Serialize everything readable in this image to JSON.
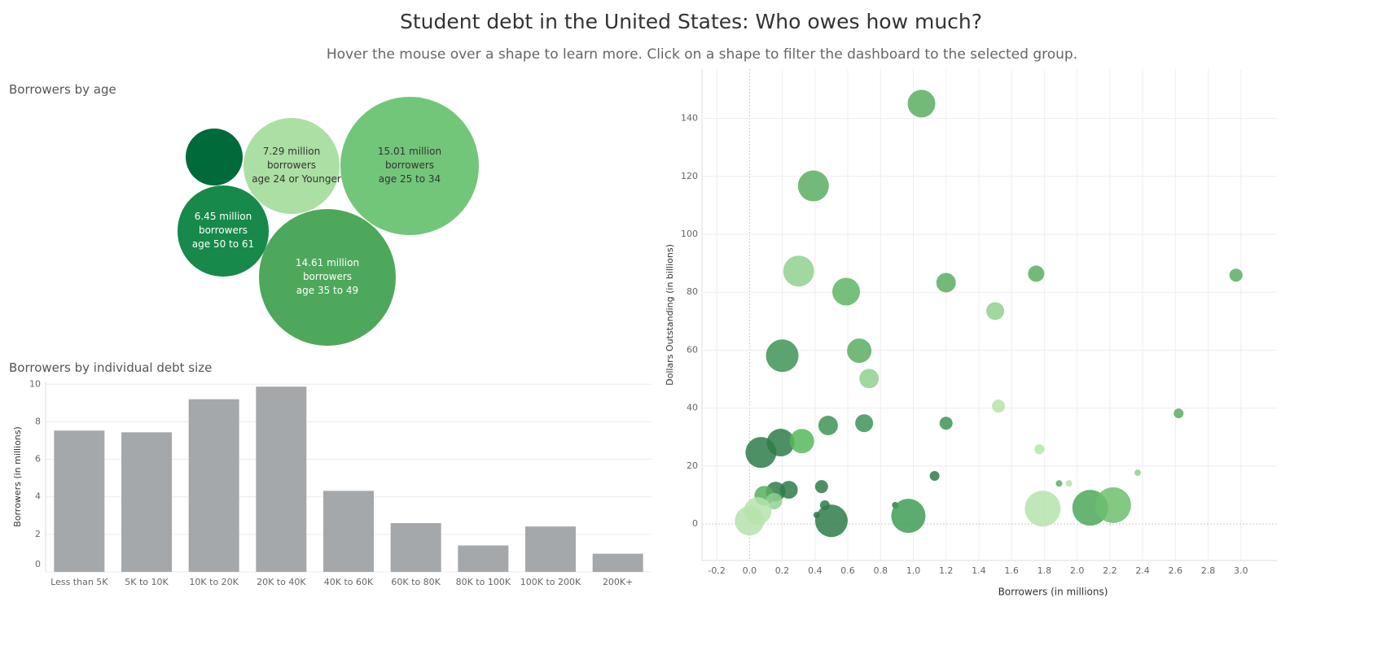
{
  "title": "Student debt in the United States: Who owes how much?",
  "subtitle": "Hover the mouse over a shape to learn more. Click on a shape to filter the dashboard to the selected group.",
  "chart_data": [
    {
      "type": "packed-bubble",
      "title": "Borrowers by age",
      "categories": [
        null,
        "age 24 or Younger",
        "age 25 to 34",
        "age 50 to 61",
        "age 35 to 49"
      ],
      "values": [
        2.55,
        7.29,
        15.01,
        6.45,
        14.61
      ],
      "value_labels": [
        null,
        "7.29 million borrowers",
        "15.01 million borrowers",
        "6.45 million borrowers",
        "14.61 million borrowers"
      ],
      "colors": [
        "#016a3a",
        "#acdfa3",
        "#72c67a",
        "#17894a",
        "#4ea85b"
      ]
    },
    {
      "type": "bar",
      "title": "Borrowers by individual debt size",
      "y_label": "Borrowers (in millions)",
      "categories": [
        "Less than 5K",
        "5K to 10K",
        "10K to 20K",
        "20K to 40K",
        "40K to 60K",
        "60K to 80K",
        "80K to 100K",
        "100K to 200K",
        "200K+"
      ],
      "values": [
        7.53,
        7.44,
        9.2,
        9.87,
        4.32,
        2.6,
        1.41,
        2.42,
        0.97
      ],
      "color": "#a5a8ab",
      "ylim": [
        0,
        10.1
      ],
      "yticks": [
        0,
        2,
        4,
        6,
        8,
        10
      ],
      "grid": true
    },
    {
      "type": "scatter",
      "x_label": "Borrowers (in millions)",
      "y_label": "Dollars Outstanding (in billions)",
      "x": [
        1.05,
        0.39,
        0.3,
        0.59,
        1.2,
        1.75,
        2.97,
        1.5,
        0.2,
        0.67,
        0.73,
        1.52,
        2.62,
        0.48,
        0.7,
        1.2,
        0.07,
        0.19,
        0.32,
        1.77,
        1.13,
        2.37,
        1.89,
        1.95,
        0.44,
        0.24,
        0.16,
        0.09,
        0.15,
        0.05,
        0.0,
        0.46,
        0.41,
        0.5,
        0.89,
        0.97,
        1.79,
        2.08,
        2.22
      ],
      "values": [
        145.1,
        116.7,
        87.3,
        80.2,
        83.3,
        86.4,
        85.9,
        73.5,
        58.1,
        59.8,
        50.2,
        40.7,
        38.2,
        34.0,
        34.8,
        34.8,
        24.7,
        28.1,
        28.6,
        25.8,
        16.6,
        17.7,
        14.0,
        14.0,
        12.9,
        11.8,
        11.2,
        9.8,
        7.9,
        4.5,
        1.1,
        6.5,
        3.1,
        1.1,
        6.5,
        2.8,
        5.3,
        5.6,
        6.5
      ],
      "sizes": [
        17,
        19,
        19,
        17,
        12,
        10,
        8,
        11,
        20,
        15,
        12,
        8,
        6,
        12,
        11,
        8,
        19,
        17,
        15,
        6,
        6,
        4,
        4,
        4,
        8,
        11,
        12,
        12,
        10,
        17,
        18,
        6,
        4,
        20,
        4,
        21,
        22,
        22,
        22
      ],
      "colors": [
        "#5aae61",
        "#5aae61",
        "#8fd18f",
        "#5cb565",
        "#5aae61",
        "#5aae61",
        "#5aae61",
        "#8fd18f",
        "#3e9456",
        "#5aae61",
        "#8fd18f",
        "#b5e3ac",
        "#5aae61",
        "#3e9456",
        "#3e9456",
        "#3e9456",
        "#2e7d4a",
        "#2e7d4a",
        "#56b85c",
        "#b5e3ac",
        "#2e7d4a",
        "#8fd18f",
        "#5aae61",
        "#b5e3ac",
        "#2e7d4a",
        "#2e7d4a",
        "#2e7d4a",
        "#5aae61",
        "#8fd18f",
        "#b5e3ac",
        "#b5e3ac",
        "#2e7d4a",
        "#2e7d4a",
        "#2e7d4a",
        "#2e7d4a",
        "#3f9c56",
        "#b5e3ac",
        "#4ea85b",
        "#6cc06f"
      ],
      "xlim": [
        -0.29,
        3.22
      ],
      "ylim": [
        -12.6,
        157
      ],
      "xticks": [
        -0.2,
        {
          "value": 0,
          "label": "0.0"
        },
        0.2,
        0.4,
        0.6,
        0.8,
        {
          "value": 1,
          "label": "1.0"
        },
        1.2,
        1.4,
        1.6,
        1.8,
        {
          "value": 2,
          "label": "2.0"
        },
        2.2,
        2.4,
        2.6,
        2.8,
        {
          "value": 3,
          "label": "3.0"
        }
      ],
      "yticks": [
        0,
        20,
        40,
        60,
        80,
        100,
        120,
        140
      ],
      "grid": true
    }
  ]
}
